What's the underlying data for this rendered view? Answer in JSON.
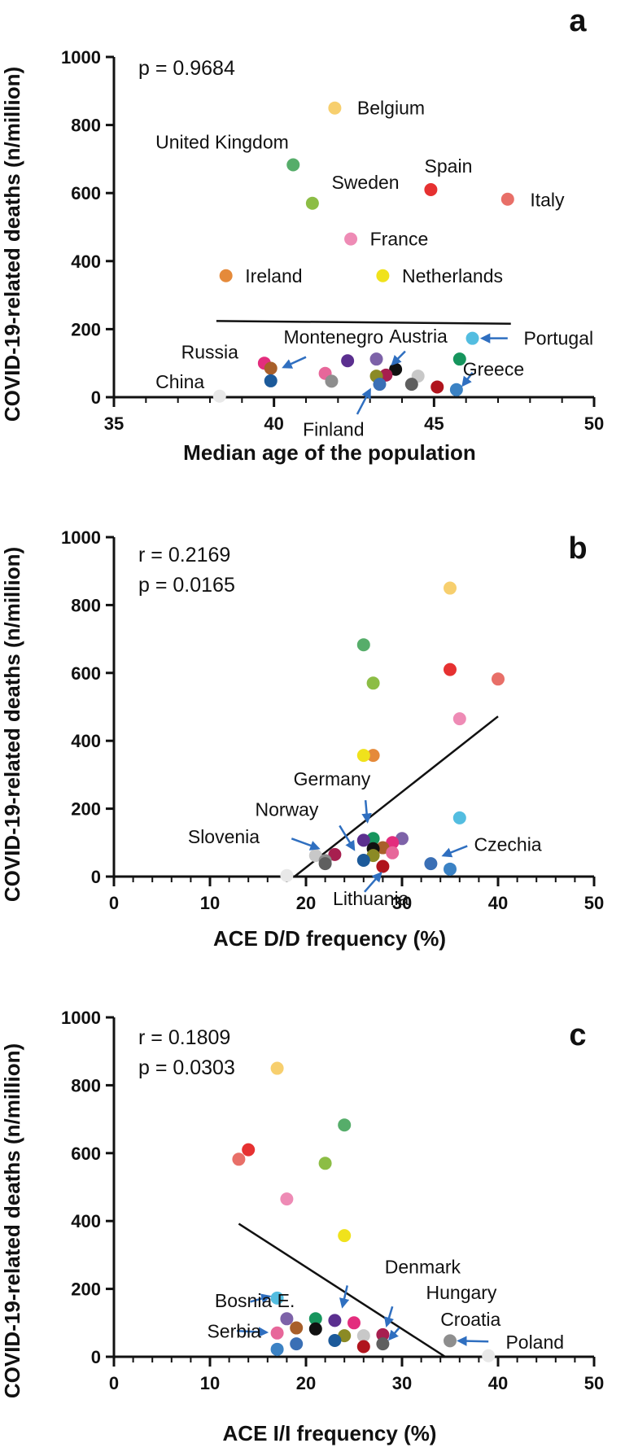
{
  "colors": {
    "axis": "#111111",
    "arrow": "#2f6fc0",
    "background": "#ffffff"
  },
  "chart_data": [
    {
      "panel": "a",
      "type": "scatter",
      "xlabel": "Median age of the population",
      "ylabel": "COVID-19-related deaths (n/million)",
      "xlim": [
        35,
        50
      ],
      "ylim": [
        0,
        1000
      ],
      "xticks": [
        35,
        40,
        45,
        50
      ],
      "yticks": [
        0,
        200,
        400,
        600,
        800,
        1000
      ],
      "stats": [
        "p = 0.9684"
      ],
      "trendline": {
        "x": [
          38.2,
          47.4
        ],
        "y": [
          224,
          216
        ]
      },
      "points": [
        {
          "x": 41.9,
          "y": 850,
          "color": "#f7cf6e"
        },
        {
          "x": 40.6,
          "y": 683,
          "color": "#56ad6a"
        },
        {
          "x": 44.9,
          "y": 610,
          "color": "#e63131"
        },
        {
          "x": 47.3,
          "y": 582,
          "color": "#e86f68"
        },
        {
          "x": 41.2,
          "y": 570,
          "color": "#8cbd45"
        },
        {
          "x": 42.4,
          "y": 465,
          "color": "#ee8bb5"
        },
        {
          "x": 38.5,
          "y": 357,
          "color": "#e58a3a"
        },
        {
          "x": 43.4,
          "y": 357,
          "color": "#f0e21c"
        },
        {
          "x": 46.2,
          "y": 173,
          "color": "#53bde0"
        },
        {
          "x": 45.8,
          "y": 112,
          "color": "#16955d"
        },
        {
          "x": 42.3,
          "y": 107,
          "color": "#5b2f8f"
        },
        {
          "x": 43.2,
          "y": 112,
          "color": "#7d62a8"
        },
        {
          "x": 39.7,
          "y": 100,
          "color": "#e32d7d"
        },
        {
          "x": 39.9,
          "y": 85,
          "color": "#a85f2a"
        },
        {
          "x": 43.8,
          "y": 82,
          "color": "#111111"
        },
        {
          "x": 41.6,
          "y": 70,
          "color": "#e7679a"
        },
        {
          "x": 43.5,
          "y": 65,
          "color": "#a71f4f"
        },
        {
          "x": 44.5,
          "y": 62,
          "color": "#c8c8c8"
        },
        {
          "x": 43.2,
          "y": 62,
          "color": "#8b8a25"
        },
        {
          "x": 41.8,
          "y": 47,
          "color": "#8e8e8e"
        },
        {
          "x": 39.9,
          "y": 48,
          "color": "#1c5a9a"
        },
        {
          "x": 43.3,
          "y": 38,
          "color": "#3a6fb5"
        },
        {
          "x": 44.3,
          "y": 38,
          "color": "#5f5f5f"
        },
        {
          "x": 45.1,
          "y": 30,
          "color": "#b0141d"
        },
        {
          "x": 45.7,
          "y": 22,
          "color": "#3b82c4"
        },
        {
          "x": 38.3,
          "y": 3,
          "color": "#e8e8e8"
        }
      ],
      "labels": [
        {
          "text": "Belgium",
          "x": 42.6,
          "y": 850
        },
        {
          "text": "United Kingdom",
          "x": 36.3,
          "y": 750
        },
        {
          "text": "Sweden",
          "x": 41.8,
          "y": 632
        },
        {
          "text": "Spain",
          "x": 44.7,
          "y": 680
        },
        {
          "text": "Italy",
          "x": 48.0,
          "y": 580
        },
        {
          "text": "France",
          "x": 43.0,
          "y": 465
        },
        {
          "text": "Ireland",
          "x": 39.1,
          "y": 357
        },
        {
          "text": "Netherlands",
          "x": 44.0,
          "y": 357
        },
        {
          "text": "Portugal",
          "x": 47.8,
          "y": 173
        },
        {
          "text": "Austria",
          "x": 43.6,
          "y": 180
        },
        {
          "text": "Montenegro",
          "x": 40.3,
          "y": 177
        },
        {
          "text": "Russia",
          "x": 37.1,
          "y": 133
        },
        {
          "text": "Greece",
          "x": 45.9,
          "y": 82
        },
        {
          "text": "China",
          "x": 36.3,
          "y": 45
        },
        {
          "text": "Finland",
          "x": 40.9,
          "y": -95
        }
      ],
      "arrows": [
        {
          "x1": 47.3,
          "y1": 173,
          "x2": 46.5,
          "y2": 173
        },
        {
          "x1": 44.1,
          "y1": 135,
          "x2": 43.7,
          "y2": 97
        },
        {
          "x1": 41.0,
          "y1": 118,
          "x2": 40.3,
          "y2": 88
        },
        {
          "x1": 46.2,
          "y1": 72,
          "x2": 45.9,
          "y2": 35
        },
        {
          "x1": 42.6,
          "y1": -50,
          "x2": 43.0,
          "y2": 22
        }
      ]
    },
    {
      "panel": "b",
      "type": "scatter",
      "xlabel": "ACE D/D frequency (%)",
      "ylabel": "COVID-19-related deaths (n/million)",
      "xlim": [
        0,
        50
      ],
      "ylim": [
        0,
        1000
      ],
      "xticks": [
        0,
        10,
        20,
        30,
        40,
        50
      ],
      "yticks": [
        0,
        200,
        400,
        600,
        800,
        1000
      ],
      "stats": [
        "r = 0.2169",
        "p = 0.0165"
      ],
      "trendline": {
        "x": [
          18.8,
          40
        ],
        "y": [
          0,
          472
        ]
      },
      "points": [
        {
          "x": 35,
          "y": 850,
          "color": "#f7cf6e"
        },
        {
          "x": 26,
          "y": 683,
          "color": "#56ad6a"
        },
        {
          "x": 35,
          "y": 610,
          "color": "#e63131"
        },
        {
          "x": 40,
          "y": 582,
          "color": "#e86f68"
        },
        {
          "x": 27,
          "y": 570,
          "color": "#8cbd45"
        },
        {
          "x": 36,
          "y": 465,
          "color": "#ee8bb5"
        },
        {
          "x": 27,
          "y": 357,
          "color": "#e58a3a"
        },
        {
          "x": 26,
          "y": 357,
          "color": "#f0e21c"
        },
        {
          "x": 36,
          "y": 173,
          "color": "#53bde0"
        },
        {
          "x": 27,
          "y": 112,
          "color": "#16955d"
        },
        {
          "x": 26,
          "y": 107,
          "color": "#5b2f8f"
        },
        {
          "x": 30,
          "y": 112,
          "color": "#7d62a8"
        },
        {
          "x": 29,
          "y": 100,
          "color": "#e32d7d"
        },
        {
          "x": 28,
          "y": 85,
          "color": "#a85f2a"
        },
        {
          "x": 27,
          "y": 82,
          "color": "#111111"
        },
        {
          "x": 29,
          "y": 70,
          "color": "#e7679a"
        },
        {
          "x": 23,
          "y": 65,
          "color": "#a71f4f"
        },
        {
          "x": 21,
          "y": 62,
          "color": "#c8c8c8"
        },
        {
          "x": 27,
          "y": 62,
          "color": "#8b8a25"
        },
        {
          "x": 22,
          "y": 47,
          "color": "#8e8e8e"
        },
        {
          "x": 26,
          "y": 48,
          "color": "#1c5a9a"
        },
        {
          "x": 33,
          "y": 38,
          "color": "#3a6fb5"
        },
        {
          "x": 22,
          "y": 38,
          "color": "#5f5f5f"
        },
        {
          "x": 28,
          "y": 30,
          "color": "#b0141d"
        },
        {
          "x": 35,
          "y": 22,
          "color": "#3b82c4"
        },
        {
          "x": 18,
          "y": 3,
          "color": "#e8e8e8"
        }
      ],
      "labels": [
        {
          "text": "Germany",
          "x": 18.7,
          "y": 288
        },
        {
          "text": "Norway",
          "x": 14.7,
          "y": 198
        },
        {
          "text": "Slovenia",
          "x": 7.7,
          "y": 118
        },
        {
          "text": "Czechia",
          "x": 37.5,
          "y": 95
        },
        {
          "text": "Lithuania",
          "x": 22.8,
          "y": -65
        }
      ],
      "arrows": [
        {
          "x1": 26.2,
          "y1": 225,
          "x2": 26.4,
          "y2": 162
        },
        {
          "x1": 23.5,
          "y1": 150,
          "x2": 25.0,
          "y2": 80
        },
        {
          "x1": 18.5,
          "y1": 112,
          "x2": 21.3,
          "y2": 83
        },
        {
          "x1": 36.8,
          "y1": 90,
          "x2": 34.3,
          "y2": 62
        },
        {
          "x1": 26.1,
          "y1": -45,
          "x2": 27.8,
          "y2": 10
        }
      ]
    },
    {
      "panel": "c",
      "type": "scatter",
      "xlabel": "ACE I/I frequency (%)",
      "ylabel": "COVID-19-related deaths (n/million)",
      "xlim": [
        0,
        50
      ],
      "ylim": [
        0,
        1000
      ],
      "xticks": [
        0,
        10,
        20,
        30,
        40,
        50
      ],
      "yticks": [
        0,
        200,
        400,
        600,
        800,
        1000
      ],
      "stats": [
        "r = 0.1809",
        "p = 0.0303"
      ],
      "trendline": {
        "x": [
          13,
          34.5
        ],
        "y": [
          392,
          0
        ]
      },
      "points": [
        {
          "x": 17,
          "y": 850,
          "color": "#f7cf6e"
        },
        {
          "x": 24,
          "y": 683,
          "color": "#56ad6a"
        },
        {
          "x": 14,
          "y": 610,
          "color": "#e63131"
        },
        {
          "x": 13,
          "y": 582,
          "color": "#e86f68"
        },
        {
          "x": 22,
          "y": 570,
          "color": "#8cbd45"
        },
        {
          "x": 18,
          "y": 465,
          "color": "#ee8bb5"
        },
        {
          "x": 24,
          "y": 357,
          "color": "#f0e21c"
        },
        {
          "x": 17,
          "y": 173,
          "color": "#53bde0"
        },
        {
          "x": 21,
          "y": 112,
          "color": "#16955d"
        },
        {
          "x": 23,
          "y": 107,
          "color": "#5b2f8f"
        },
        {
          "x": 18,
          "y": 112,
          "color": "#7d62a8"
        },
        {
          "x": 25,
          "y": 100,
          "color": "#e32d7d"
        },
        {
          "x": 19,
          "y": 85,
          "color": "#a85f2a"
        },
        {
          "x": 21,
          "y": 82,
          "color": "#111111"
        },
        {
          "x": 17,
          "y": 70,
          "color": "#e7679a"
        },
        {
          "x": 28,
          "y": 65,
          "color": "#a71f4f"
        },
        {
          "x": 26,
          "y": 62,
          "color": "#c8c8c8"
        },
        {
          "x": 24,
          "y": 62,
          "color": "#8b8a25"
        },
        {
          "x": 35,
          "y": 47,
          "color": "#8e8e8e"
        },
        {
          "x": 23,
          "y": 48,
          "color": "#1c5a9a"
        },
        {
          "x": 19,
          "y": 38,
          "color": "#3a6fb5"
        },
        {
          "x": 28,
          "y": 38,
          "color": "#5f5f5f"
        },
        {
          "x": 26,
          "y": 30,
          "color": "#b0141d"
        },
        {
          "x": 17,
          "y": 22,
          "color": "#3b82c4"
        },
        {
          "x": 39,
          "y": 3,
          "color": "#e8e8e8"
        }
      ],
      "labels": [
        {
          "text": "Denmark",
          "x": 28.2,
          "y": 265
        },
        {
          "text": "Bosnia E.",
          "x": 10.5,
          "y": 165
        },
        {
          "text": "Hungary",
          "x": 32.5,
          "y": 190
        },
        {
          "text": "Croatia",
          "x": 34.0,
          "y": 110
        },
        {
          "text": "Serbia",
          "x": 9.7,
          "y": 75
        },
        {
          "text": "Poland",
          "x": 40.8,
          "y": 43
        }
      ],
      "arrows": [
        {
          "x1": 24.3,
          "y1": 210,
          "x2": 23.8,
          "y2": 148
        },
        {
          "x1": 14.2,
          "y1": 162,
          "x2": 16.2,
          "y2": 178
        },
        {
          "x1": 29.0,
          "y1": 148,
          "x2": 28.4,
          "y2": 92
        },
        {
          "x1": 29.7,
          "y1": 85,
          "x2": 28.7,
          "y2": 52
        },
        {
          "x1": 12.8,
          "y1": 76,
          "x2": 15.9,
          "y2": 72
        },
        {
          "x1": 39.0,
          "y1": 45,
          "x2": 35.9,
          "y2": 47
        }
      ]
    }
  ]
}
